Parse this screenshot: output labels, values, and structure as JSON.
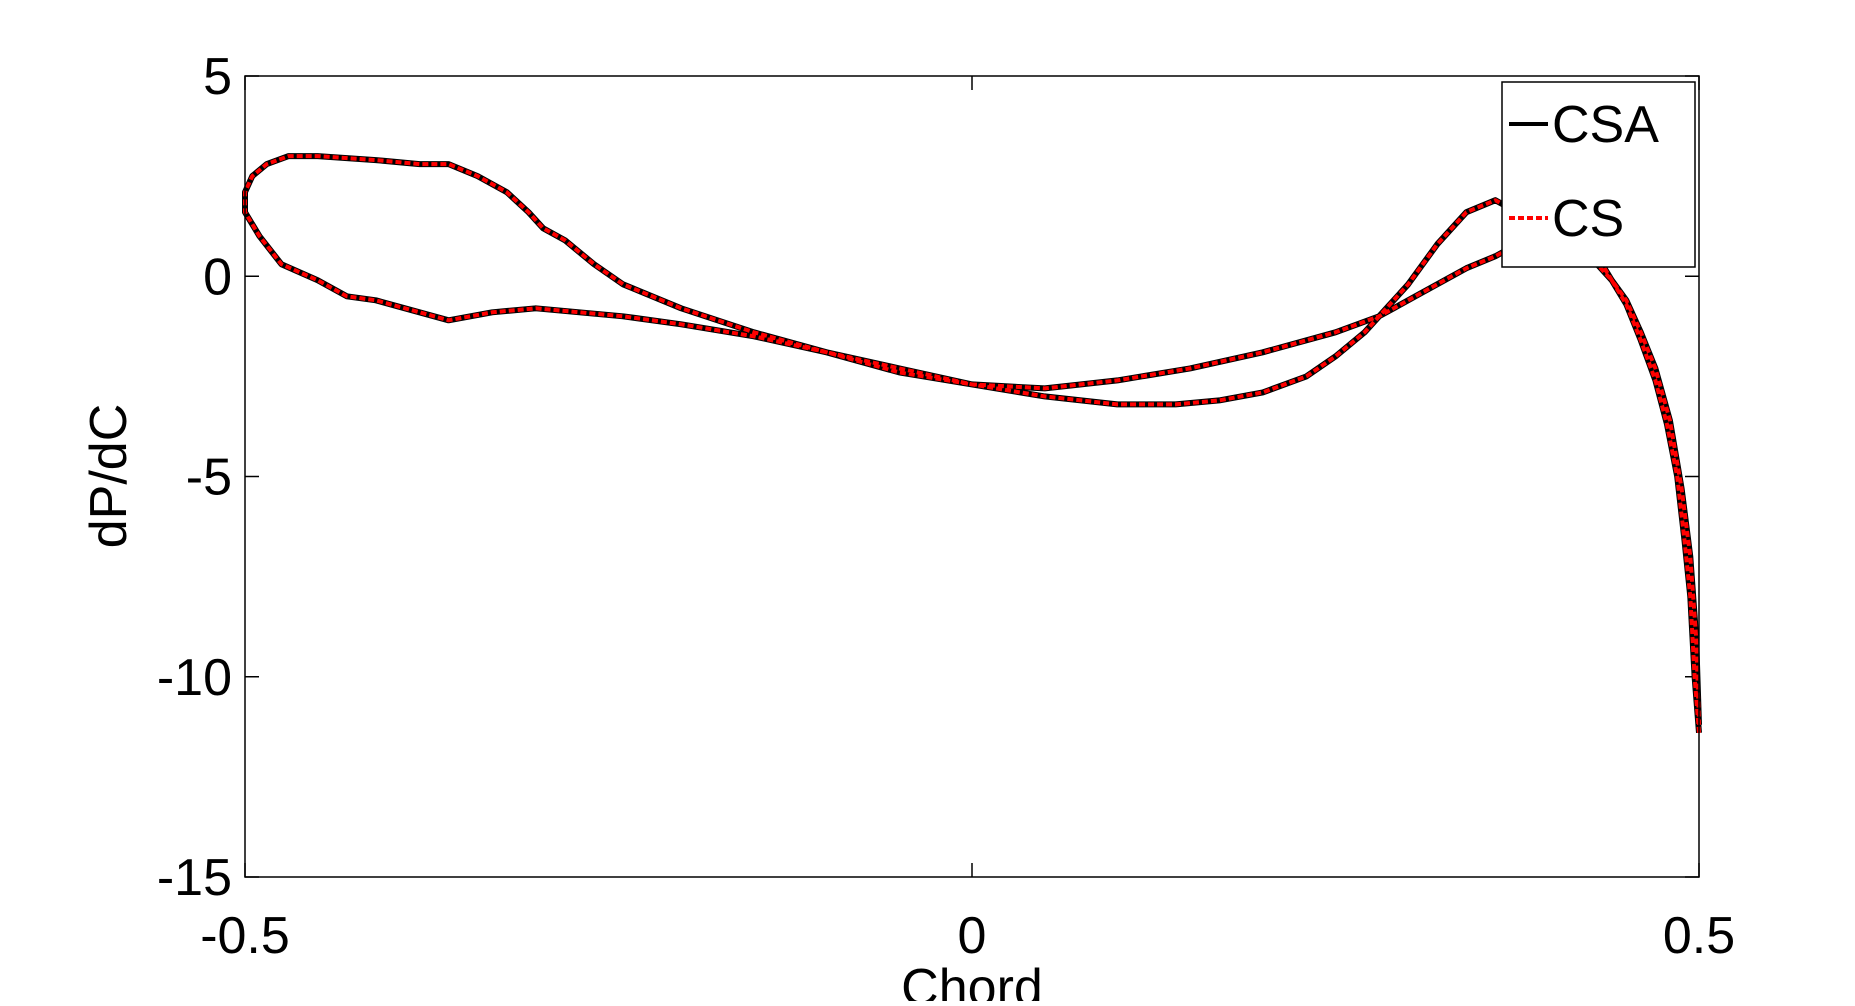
{
  "chart_data": {
    "type": "line",
    "xlabel": "Chord",
    "ylabel": "dP/dC",
    "xlim": [
      -0.5,
      0.5
    ],
    "ylim": [
      -15,
      5
    ],
    "x_ticks": [
      -0.5,
      0,
      0.5
    ],
    "y_ticks": [
      5,
      0,
      -5,
      -10,
      -15
    ],
    "x_tick_labels": [
      "-0.5",
      "0",
      "0.5"
    ],
    "y_tick_labels": [
      "5",
      "0",
      "-5",
      "-10",
      "-15"
    ],
    "grid": false,
    "legend_position": "top-right",
    "series": [
      {
        "name": "CSA",
        "color": "#000000",
        "style": "solid",
        "x": [
          0.5,
          0.497,
          0.494,
          0.49,
          0.485,
          0.478,
          0.47,
          0.46,
          0.45,
          0.44,
          0.43,
          0.42,
          0.405,
          0.39,
          0.375,
          0.36,
          0.34,
          0.32,
          0.3,
          0.285,
          0.27,
          0.25,
          0.23,
          0.2,
          0.17,
          0.14,
          0.1,
          0.05,
          0.0,
          -0.05,
          -0.1,
          -0.15,
          -0.2,
          -0.24,
          -0.27,
          -0.3,
          -0.33,
          -0.36,
          -0.39,
          -0.41,
          -0.43,
          -0.45,
          -0.475,
          -0.49,
          -0.5,
          -0.5,
          -0.495,
          -0.485,
          -0.47,
          -0.45,
          -0.41,
          -0.38,
          -0.36,
          -0.34,
          -0.32,
          -0.305,
          -0.295,
          -0.28,
          -0.26,
          -0.24,
          -0.2,
          -0.15,
          -0.1,
          -0.05,
          0.0,
          0.05,
          0.1,
          0.15,
          0.2,
          0.25,
          0.28,
          0.31,
          0.34,
          0.36,
          0.375,
          0.39,
          0.405,
          0.42,
          0.43,
          0.44,
          0.45,
          0.46,
          0.47,
          0.48,
          0.488,
          0.494,
          0.498,
          0.5
        ],
        "y": [
          -11.4,
          -10.0,
          -8.0,
          -6.6,
          -5.0,
          -3.7,
          -2.6,
          -1.6,
          -0.7,
          -0.1,
          0.3,
          0.6,
          0.9,
          1.3,
          1.6,
          1.9,
          1.6,
          0.8,
          -0.2,
          -0.8,
          -1.4,
          -2.0,
          -2.5,
          -2.9,
          -3.1,
          -3.2,
          -3.2,
          -3.0,
          -2.7,
          -2.3,
          -1.9,
          -1.5,
          -1.2,
          -1.0,
          -0.9,
          -0.8,
          -0.9,
          -1.1,
          -0.8,
          -0.6,
          -0.5,
          -0.1,
          0.3,
          1.0,
          1.6,
          2.1,
          2.5,
          2.8,
          3.0,
          3.0,
          2.9,
          2.8,
          2.8,
          2.5,
          2.1,
          1.6,
          1.2,
          0.9,
          0.3,
          -0.2,
          -0.8,
          -1.4,
          -1.9,
          -2.4,
          -2.7,
          -2.8,
          -2.6,
          -2.3,
          -1.9,
          -1.4,
          -1.0,
          -0.4,
          0.2,
          0.5,
          0.8,
          0.9,
          1.0,
          0.9,
          0.5,
          -0.1,
          -0.6,
          -1.4,
          -2.3,
          -3.6,
          -5.3,
          -7.0,
          -9.0,
          -11.2
        ]
      },
      {
        "name": "CS",
        "color": "#ff0000",
        "style": "dashed",
        "x": [
          0.5,
          0.497,
          0.494,
          0.49,
          0.485,
          0.478,
          0.47,
          0.46,
          0.45,
          0.44,
          0.43,
          0.42,
          0.405,
          0.39,
          0.375,
          0.36,
          0.34,
          0.32,
          0.3,
          0.285,
          0.27,
          0.25,
          0.23,
          0.2,
          0.17,
          0.14,
          0.1,
          0.05,
          0.0,
          -0.05,
          -0.1,
          -0.15,
          -0.2,
          -0.24,
          -0.27,
          -0.3,
          -0.33,
          -0.36,
          -0.39,
          -0.41,
          -0.43,
          -0.45,
          -0.475,
          -0.49,
          -0.5,
          -0.5,
          -0.495,
          -0.485,
          -0.47,
          -0.45,
          -0.41,
          -0.38,
          -0.36,
          -0.34,
          -0.32,
          -0.305,
          -0.295,
          -0.28,
          -0.26,
          -0.24,
          -0.2,
          -0.15,
          -0.1,
          -0.05,
          0.0,
          0.05,
          0.1,
          0.15,
          0.2,
          0.25,
          0.28,
          0.31,
          0.34,
          0.36,
          0.375,
          0.39,
          0.405,
          0.42,
          0.43,
          0.44,
          0.45,
          0.46,
          0.47,
          0.48,
          0.488,
          0.494,
          0.498,
          0.5
        ],
        "y": [
          -11.4,
          -10.0,
          -8.0,
          -6.6,
          -5.0,
          -3.7,
          -2.6,
          -1.6,
          -0.7,
          -0.1,
          0.3,
          0.6,
          0.9,
          1.3,
          1.6,
          1.9,
          1.6,
          0.8,
          -0.2,
          -0.8,
          -1.4,
          -2.0,
          -2.5,
          -2.9,
          -3.1,
          -3.2,
          -3.2,
          -3.0,
          -2.7,
          -2.3,
          -1.9,
          -1.5,
          -1.2,
          -1.0,
          -0.9,
          -0.8,
          -0.9,
          -1.1,
          -0.8,
          -0.6,
          -0.5,
          -0.1,
          0.3,
          1.0,
          1.6,
          2.1,
          2.5,
          2.8,
          3.0,
          3.0,
          2.9,
          2.8,
          2.8,
          2.5,
          2.1,
          1.6,
          1.2,
          0.9,
          0.3,
          -0.2,
          -0.8,
          -1.4,
          -1.9,
          -2.4,
          -2.7,
          -2.8,
          -2.6,
          -2.3,
          -1.9,
          -1.4,
          -1.0,
          -0.4,
          0.2,
          0.5,
          0.8,
          0.9,
          1.0,
          0.9,
          0.5,
          -0.1,
          -0.6,
          -1.4,
          -2.3,
          -3.6,
          -5.3,
          -7.0,
          -9.0,
          -11.2
        ]
      }
    ]
  }
}
